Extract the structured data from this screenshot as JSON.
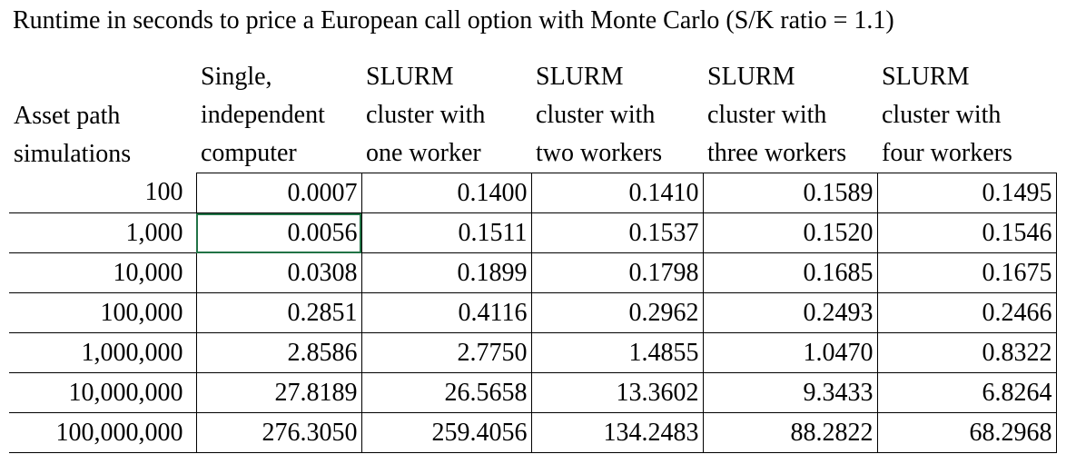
{
  "title": "Runtime in seconds to price a European call option with Monte Carlo (S/K ratio = 1.1)",
  "headers": [
    [
      "Asset path",
      "simulations"
    ],
    [
      "Single,",
      "independent",
      "computer"
    ],
    [
      "SLURM",
      "cluster with",
      "one worker"
    ],
    [
      "SLURM",
      "cluster with",
      "two workers"
    ],
    [
      "SLURM",
      "cluster with",
      "three workers"
    ],
    [
      "SLURM",
      "cluster with",
      "four workers"
    ]
  ],
  "rows": [
    [
      "100",
      "0.0007",
      "0.1400",
      "0.1410",
      "0.1589",
      "0.1495"
    ],
    [
      "1,000",
      "0.0056",
      "0.1511",
      "0.1537",
      "0.1520",
      "0.1546"
    ],
    [
      "10,000",
      "0.0308",
      "0.1899",
      "0.1798",
      "0.1685",
      "0.1675"
    ],
    [
      "100,000",
      "0.2851",
      "0.4116",
      "0.2962",
      "0.2493",
      "0.2466"
    ],
    [
      "1,000,000",
      "2.8586",
      "2.7750",
      "1.4855",
      "1.0470",
      "0.8322"
    ],
    [
      "10,000,000",
      "27.8189",
      "26.5658",
      "13.3602",
      "9.3433",
      "6.8264"
    ],
    [
      "100,000,000",
      "276.3050",
      "259.4056",
      "134.2483",
      "88.2822",
      "68.2968"
    ]
  ],
  "selected_cell": {
    "row": 1,
    "col": 1
  },
  "colors": {
    "selection": "#217346",
    "grid": "#000000"
  }
}
